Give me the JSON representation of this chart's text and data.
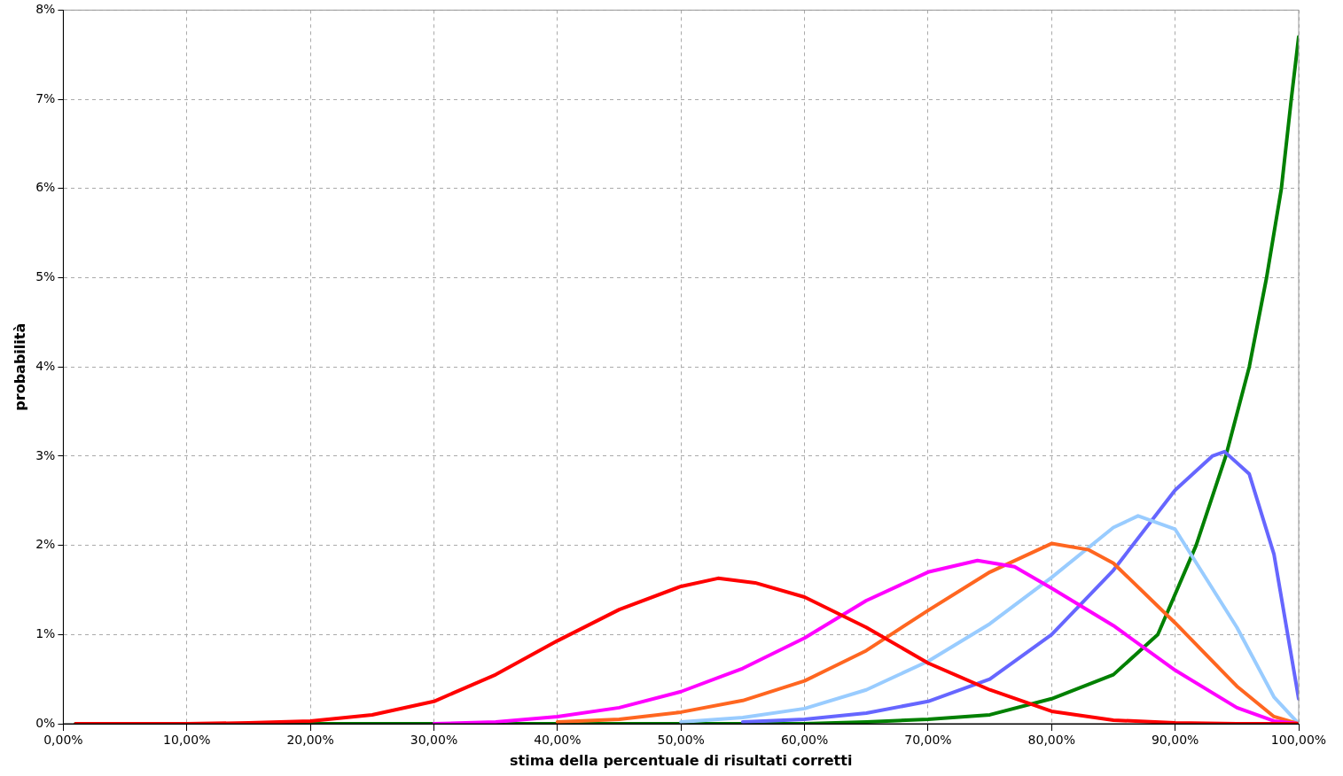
{
  "chart_data": {
    "type": "line",
    "xlabel": "stima della percentuale di risultati corretti",
    "ylabel": "probabilità",
    "xlim": [
      0,
      100
    ],
    "ylim": [
      0,
      8
    ],
    "xticks": [
      {
        "value": 0,
        "label": "0,00%"
      },
      {
        "value": 10,
        "label": "10,00%"
      },
      {
        "value": 20,
        "label": "20,00%"
      },
      {
        "value": 30,
        "label": "30,00%"
      },
      {
        "value": 40,
        "label": "40,00%"
      },
      {
        "value": 50,
        "label": "50,00%"
      },
      {
        "value": 60,
        "label": "60,00%"
      },
      {
        "value": 70,
        "label": "70,00%"
      },
      {
        "value": 80,
        "label": "80,00%"
      },
      {
        "value": 90,
        "label": "90,00%"
      },
      {
        "value": 100,
        "label": "100,00%"
      }
    ],
    "yticks": [
      {
        "value": 0,
        "label": "0%"
      },
      {
        "value": 1,
        "label": "1%"
      },
      {
        "value": 2,
        "label": "2%"
      },
      {
        "value": 3,
        "label": "3%"
      },
      {
        "value": 4,
        "label": "4%"
      },
      {
        "value": 5,
        "label": "5%"
      },
      {
        "value": 6,
        "label": "6%"
      },
      {
        "value": 7,
        "label": "7%"
      },
      {
        "value": 8,
        "label": "8%"
      }
    ],
    "grid": true,
    "legend": false,
    "marker": "none",
    "line_style": "solid",
    "series": [
      {
        "color": "#ff0000",
        "x": [
          1,
          10,
          15,
          20,
          25,
          30,
          35,
          40,
          45,
          50,
          53,
          56,
          60,
          65,
          70,
          75,
          80,
          85,
          90,
          95,
          100
        ],
        "values": [
          0,
          0,
          0.01,
          0.03,
          0.1,
          0.25,
          0.55,
          0.93,
          1.28,
          1.54,
          1.63,
          1.58,
          1.42,
          1.08,
          0.68,
          0.38,
          0.14,
          0.04,
          0.01,
          0,
          0
        ]
      },
      {
        "color": "#ff00ff",
        "x": [
          30,
          35,
          40,
          45,
          50,
          55,
          60,
          65,
          70,
          74,
          77,
          80,
          85,
          90,
          95,
          98,
          100
        ],
        "values": [
          0,
          0.02,
          0.08,
          0.18,
          0.36,
          0.62,
          0.96,
          1.38,
          1.7,
          1.83,
          1.76,
          1.52,
          1.1,
          0.6,
          0.18,
          0.03,
          0
        ]
      },
      {
        "color": "#ff6620",
        "x": [
          40,
          45,
          50,
          55,
          60,
          65,
          70,
          75,
          80,
          83,
          85,
          90,
          95,
          98,
          100
        ],
        "values": [
          0.02,
          0.05,
          0.13,
          0.26,
          0.48,
          0.82,
          1.27,
          1.7,
          2.02,
          1.95,
          1.8,
          1.13,
          0.42,
          0.08,
          0
        ]
      },
      {
        "color": "#99ccff",
        "x": [
          50,
          55,
          60,
          65,
          70,
          75,
          80,
          85,
          87,
          90,
          95,
          98,
          100
        ],
        "values": [
          0.02,
          0.07,
          0.17,
          0.38,
          0.7,
          1.12,
          1.64,
          2.2,
          2.33,
          2.18,
          1.08,
          0.3,
          0
        ]
      },
      {
        "color": "#6666ff",
        "x": [
          55,
          60,
          65,
          70,
          75,
          80,
          85,
          90,
          93,
          94,
          96,
          98,
          100
        ],
        "values": [
          0.02,
          0.05,
          0.12,
          0.25,
          0.5,
          1.0,
          1.72,
          2.62,
          3.0,
          3.05,
          2.8,
          1.9,
          0.28
        ]
      },
      {
        "color": "#008000",
        "x": [
          1,
          20,
          40,
          60,
          65,
          70,
          75,
          80,
          85,
          88.6,
          91.7,
          94.1,
          96,
          97.4,
          98.6,
          99.4,
          100
        ],
        "values": [
          0,
          0,
          0,
          0,
          0.02,
          0.05,
          0.1,
          0.28,
          0.55,
          1,
          2,
          3,
          4,
          5,
          6,
          7,
          7.7
        ]
      }
    ]
  }
}
